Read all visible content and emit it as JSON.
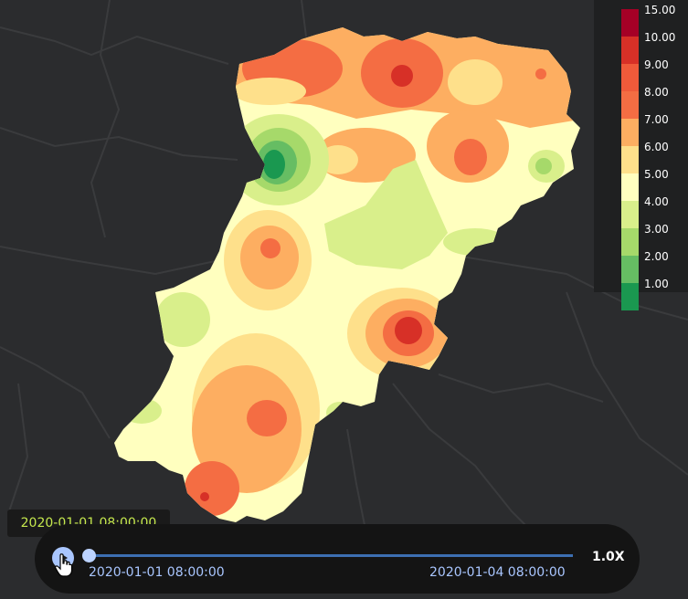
{
  "legend": {
    "items": [
      {
        "label": "15.00",
        "color": "#a50026"
      },
      {
        "label": "10.00",
        "color": "#d73027"
      },
      {
        "label": "9.00",
        "color": "#ef5a3a"
      },
      {
        "label": "8.00",
        "color": "#f46d43"
      },
      {
        "label": "7.00",
        "color": "#fdae61"
      },
      {
        "label": "6.00",
        "color": "#fee08b"
      },
      {
        "label": "5.00",
        "color": "#ffffbf"
      },
      {
        "label": "4.00",
        "color": "#d9ef8b"
      },
      {
        "label": "3.00",
        "color": "#a6d96a"
      },
      {
        "label": "2.00",
        "color": "#66bd63"
      },
      {
        "label": "1.00",
        "color": "#1a9850"
      }
    ]
  },
  "player": {
    "tooltip": "2020-01-01 08:00:00",
    "start_label": "2020-01-01 08:00:00",
    "end_label": "2020-01-04 08:00:00",
    "speed": "1.0X",
    "progress": 0
  },
  "icons": {
    "play": "play-icon",
    "cursor": "hand-cursor-icon"
  }
}
